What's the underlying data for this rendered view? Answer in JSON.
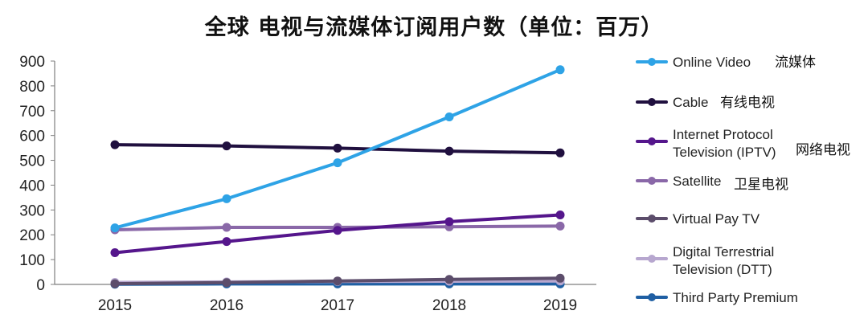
{
  "chart_data": {
    "type": "line",
    "title": "全球 电视与流媒体订阅用户数（单位：百万）",
    "xlabel": "",
    "ylabel": "",
    "x": [
      "2015",
      "2016",
      "2017",
      "2018",
      "2019"
    ],
    "ylim": [
      0,
      900
    ],
    "yticks": [
      "0",
      "100",
      "200",
      "300",
      "400",
      "500",
      "600",
      "700",
      "800",
      "900"
    ],
    "grid": false,
    "legend_position": "right",
    "series": [
      {
        "name": "Online Video",
        "cn_label": "流媒体",
        "color": "#2ea3e6",
        "values": [
          228,
          345,
          490,
          675,
          865
        ]
      },
      {
        "name": "Cable",
        "cn_label": "有线电视",
        "color": "#20103f",
        "values": [
          563,
          558,
          549,
          537,
          530
        ]
      },
      {
        "name": "Internet Protocol Television (IPTV)",
        "name_lines": [
          "Internet Protocol",
          "Television (IPTV)"
        ],
        "cn_label": "网络电视",
        "color": "#55168c",
        "values": [
          128,
          173,
          218,
          253,
          280
        ]
      },
      {
        "name": "Satellite",
        "cn_label": "卫星电视",
        "color": "#8a68a8",
        "values": [
          220,
          230,
          230,
          232,
          235
        ]
      },
      {
        "name": "Virtual Pay TV",
        "cn_label": "",
        "color": "#5c4d6b",
        "values": [
          3,
          7,
          14,
          20,
          25
        ]
      },
      {
        "name": "Digital Terrestrial Television (DTT)",
        "name_lines": [
          "Digital Terrestrial",
          "Television (DTT)"
        ],
        "cn_label": "",
        "color": "#b7a7cf",
        "values": [
          8,
          10,
          12,
          13,
          14
        ]
      },
      {
        "name": "Third Party Premium",
        "cn_label": "",
        "color": "#1f5fa3",
        "values": [
          1,
          2,
          2,
          2,
          2
        ]
      }
    ]
  }
}
